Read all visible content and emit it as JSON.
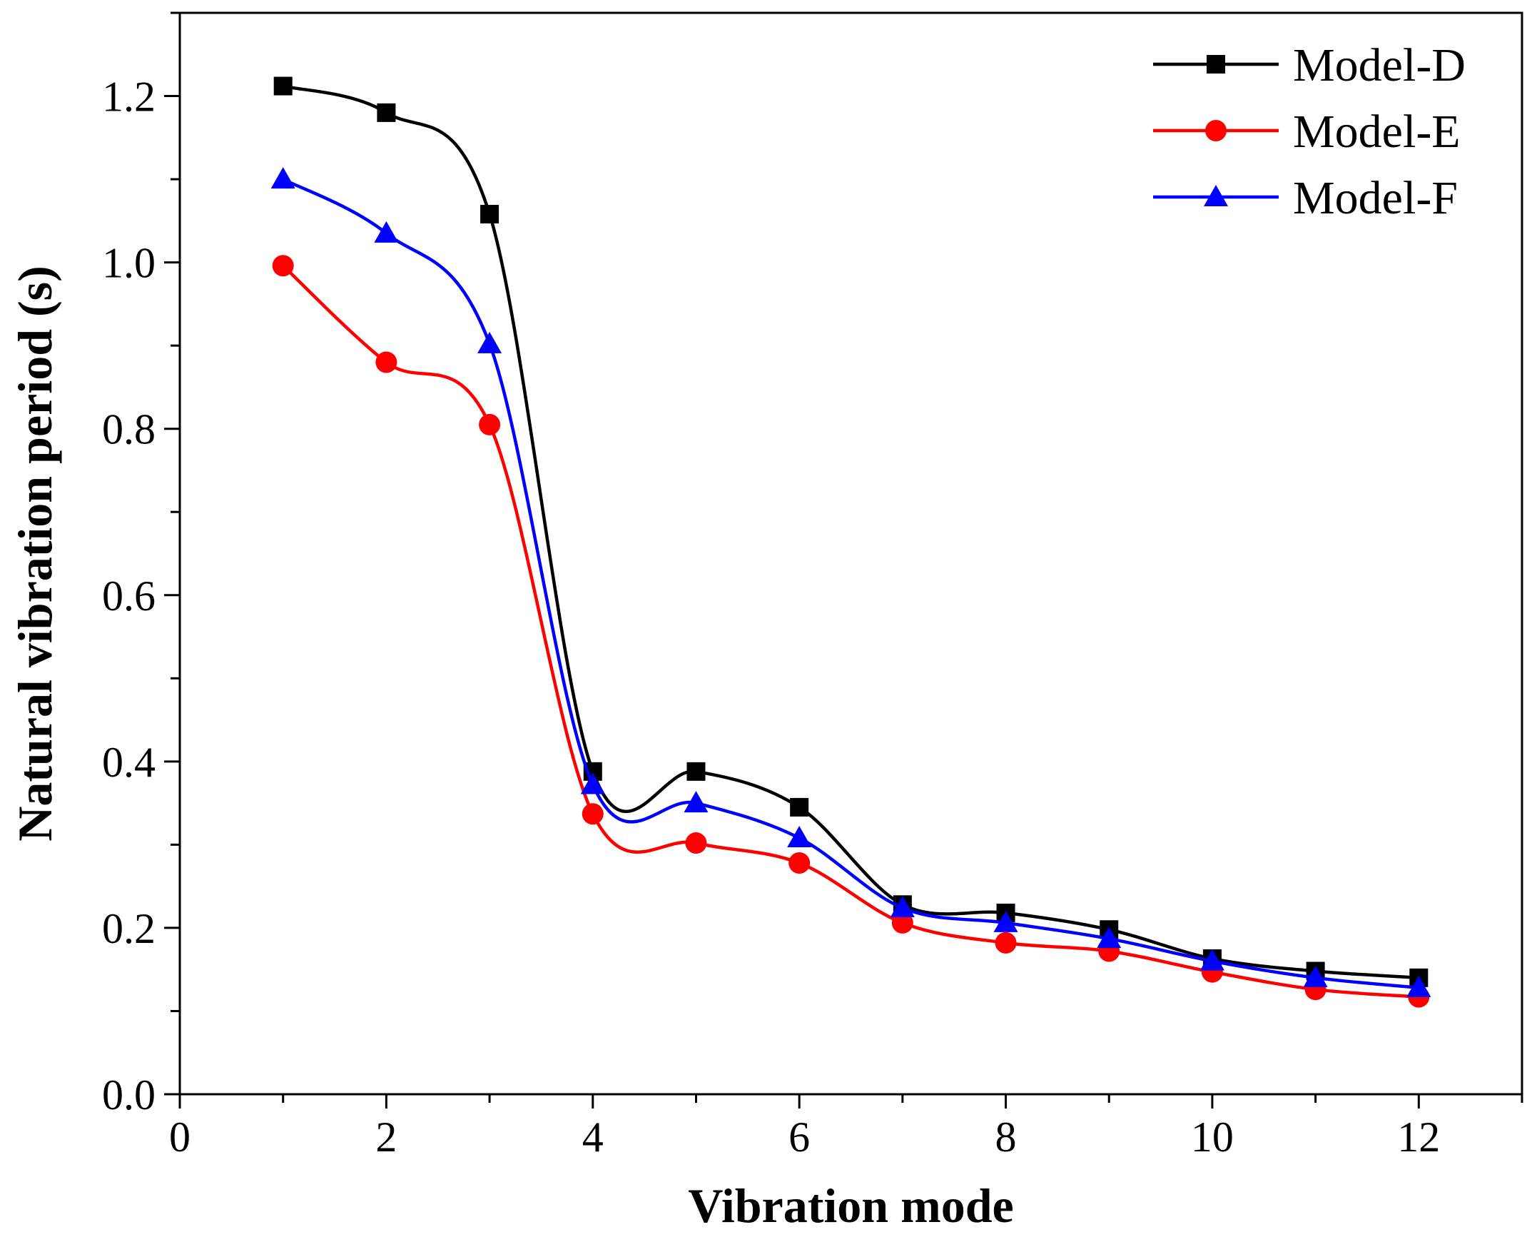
{
  "chart_data": {
    "type": "line",
    "title": "",
    "xlabel": "Vibration mode",
    "ylabel": "Natural vibration period (s)",
    "xlim": [
      0,
      13
    ],
    "ylim": [
      0,
      1.3
    ],
    "x_ticks": [
      0,
      2,
      4,
      6,
      8,
      10,
      12
    ],
    "x_tick_labels": [
      "0",
      "2",
      "4",
      "6",
      "8",
      "10",
      "12"
    ],
    "y_ticks": [
      0,
      0.2,
      0.4,
      0.6,
      0.8,
      1.0,
      1.2
    ],
    "y_tick_labels": [
      "0.0",
      "0.2",
      "0.4",
      "0.6",
      "0.8",
      "1.0",
      "1.2"
    ],
    "legend_position": "top-right",
    "grid": false,
    "x": [
      1,
      2,
      3,
      4,
      5,
      6,
      7,
      8,
      9,
      10,
      11,
      12
    ],
    "series": [
      {
        "name": "Model-D",
        "color": "#000000",
        "marker": "square",
        "values": [
          1.212,
          1.18,
          1.058,
          0.388,
          0.388,
          0.345,
          0.228,
          0.218,
          0.198,
          0.163,
          0.148,
          0.14
        ]
      },
      {
        "name": "Model-E",
        "color": "#ff0000",
        "marker": "circle",
        "values": [
          0.996,
          0.88,
          0.805,
          0.337,
          0.302,
          0.278,
          0.206,
          0.182,
          0.172,
          0.147,
          0.126,
          0.117
        ]
      },
      {
        "name": "Model-F",
        "color": "#0000ff",
        "marker": "triangle",
        "values": [
          1.1,
          1.035,
          0.902,
          0.372,
          0.35,
          0.308,
          0.224,
          0.206,
          0.187,
          0.16,
          0.14,
          0.128
        ]
      }
    ]
  }
}
